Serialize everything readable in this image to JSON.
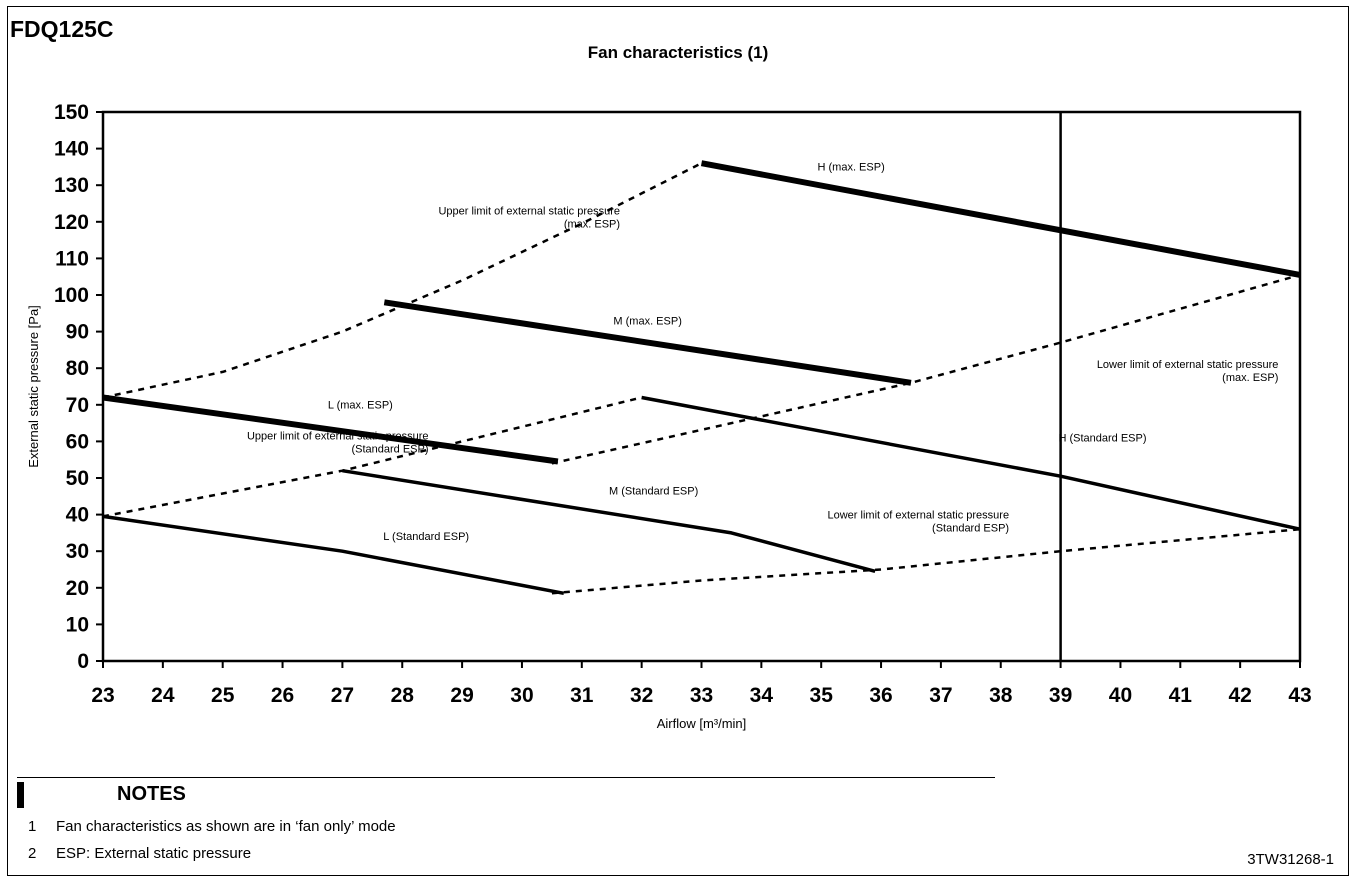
{
  "page": {
    "model": "FDQ125C",
    "doc_code": "3TW31268-1",
    "notes": {
      "heading": "NOTES",
      "items": [
        {
          "num": "1",
          "text": "Fan characteristics as shown are in ‘fan only’ mode"
        },
        {
          "num": "2",
          "text": "ESP: External static pressure"
        }
      ]
    }
  },
  "chart_data": {
    "type": "line",
    "title": "Fan characteristics (1)",
    "xlabel": "Airflow [m³/min]",
    "ylabel": "External static pressure [Pa]",
    "xlim": [
      23,
      43
    ],
    "ylim": [
      0,
      150
    ],
    "xticks": [
      "23",
      "24",
      "25",
      "26",
      "27",
      "28",
      "29",
      "30",
      "31",
      "32",
      "33",
      "34",
      "35",
      "36",
      "37",
      "38",
      "39",
      "40",
      "41",
      "42",
      "43"
    ],
    "yticks": [
      "0",
      "10",
      "20",
      "30",
      "40",
      "50",
      "60",
      "70",
      "80",
      "90",
      "100",
      "110",
      "120",
      "130",
      "140",
      "150"
    ],
    "grid": false,
    "vertical_line_x": 39,
    "series": [
      {
        "name": "H (max. ESP)",
        "style": "solid-bold",
        "x": [
          33,
          43
        ],
        "y": [
          136,
          105.5
        ],
        "label_at": [
          35.5,
          134
        ]
      },
      {
        "name": "M (max. ESP)",
        "style": "solid-bold",
        "x": [
          27.7,
          36.5
        ],
        "y": [
          98,
          76
        ],
        "label_at": [
          32.1,
          92
        ]
      },
      {
        "name": "L (max. ESP)",
        "style": "solid-bold",
        "x": [
          23,
          30.6
        ],
        "y": [
          72,
          54.5
        ],
        "label_at": [
          27.3,
          69
        ]
      },
      {
        "name": "H (Standard ESP)",
        "style": "solid",
        "x": [
          32,
          39,
          43
        ],
        "y": [
          72,
          50.5,
          36
        ],
        "label_at": [
          39.7,
          60
        ]
      },
      {
        "name": "M (Standard ESP)",
        "style": "solid",
        "x": [
          27,
          33.5,
          35.9
        ],
        "y": [
          52,
          35,
          24.5
        ],
        "label_at": [
          32.2,
          45.5
        ]
      },
      {
        "name": "L (Standard ESP)",
        "style": "solid",
        "x": [
          23,
          27,
          30.7
        ],
        "y": [
          39.5,
          30,
          18.5
        ],
        "label_at": [
          28.4,
          33
        ]
      },
      {
        "name": "Upper limit of external static pressure\n(max. ESP)",
        "style": "dashed",
        "x": [
          23,
          25,
          27,
          29,
          31,
          33
        ],
        "y": [
          72,
          79,
          90,
          104,
          119.5,
          136
        ],
        "label_at": [
          29.3,
          122
        ]
      },
      {
        "name": "Lower limit of external static pressure\n(max. ESP)",
        "style": "dashed",
        "x": [
          30.5,
          36.5,
          39,
          43
        ],
        "y": [
          54,
          76,
          87,
          105.5
        ],
        "label_at": [
          40.3,
          80
        ]
      },
      {
        "name": "Upper limit of external static pressure\n(Standard ESP)",
        "style": "dashed",
        "x": [
          23,
          27,
          32
        ],
        "y": [
          39.5,
          52,
          72
        ],
        "label_at": [
          26.1,
          60.5
        ]
      },
      {
        "name": "Lower limit of external static pressure\n(Standard ESP)",
        "style": "dashed",
        "x": [
          30.5,
          33,
          36,
          39,
          43
        ],
        "y": [
          18.5,
          22,
          25,
          30,
          36
        ],
        "label_at": [
          35.8,
          39
        ]
      }
    ]
  }
}
